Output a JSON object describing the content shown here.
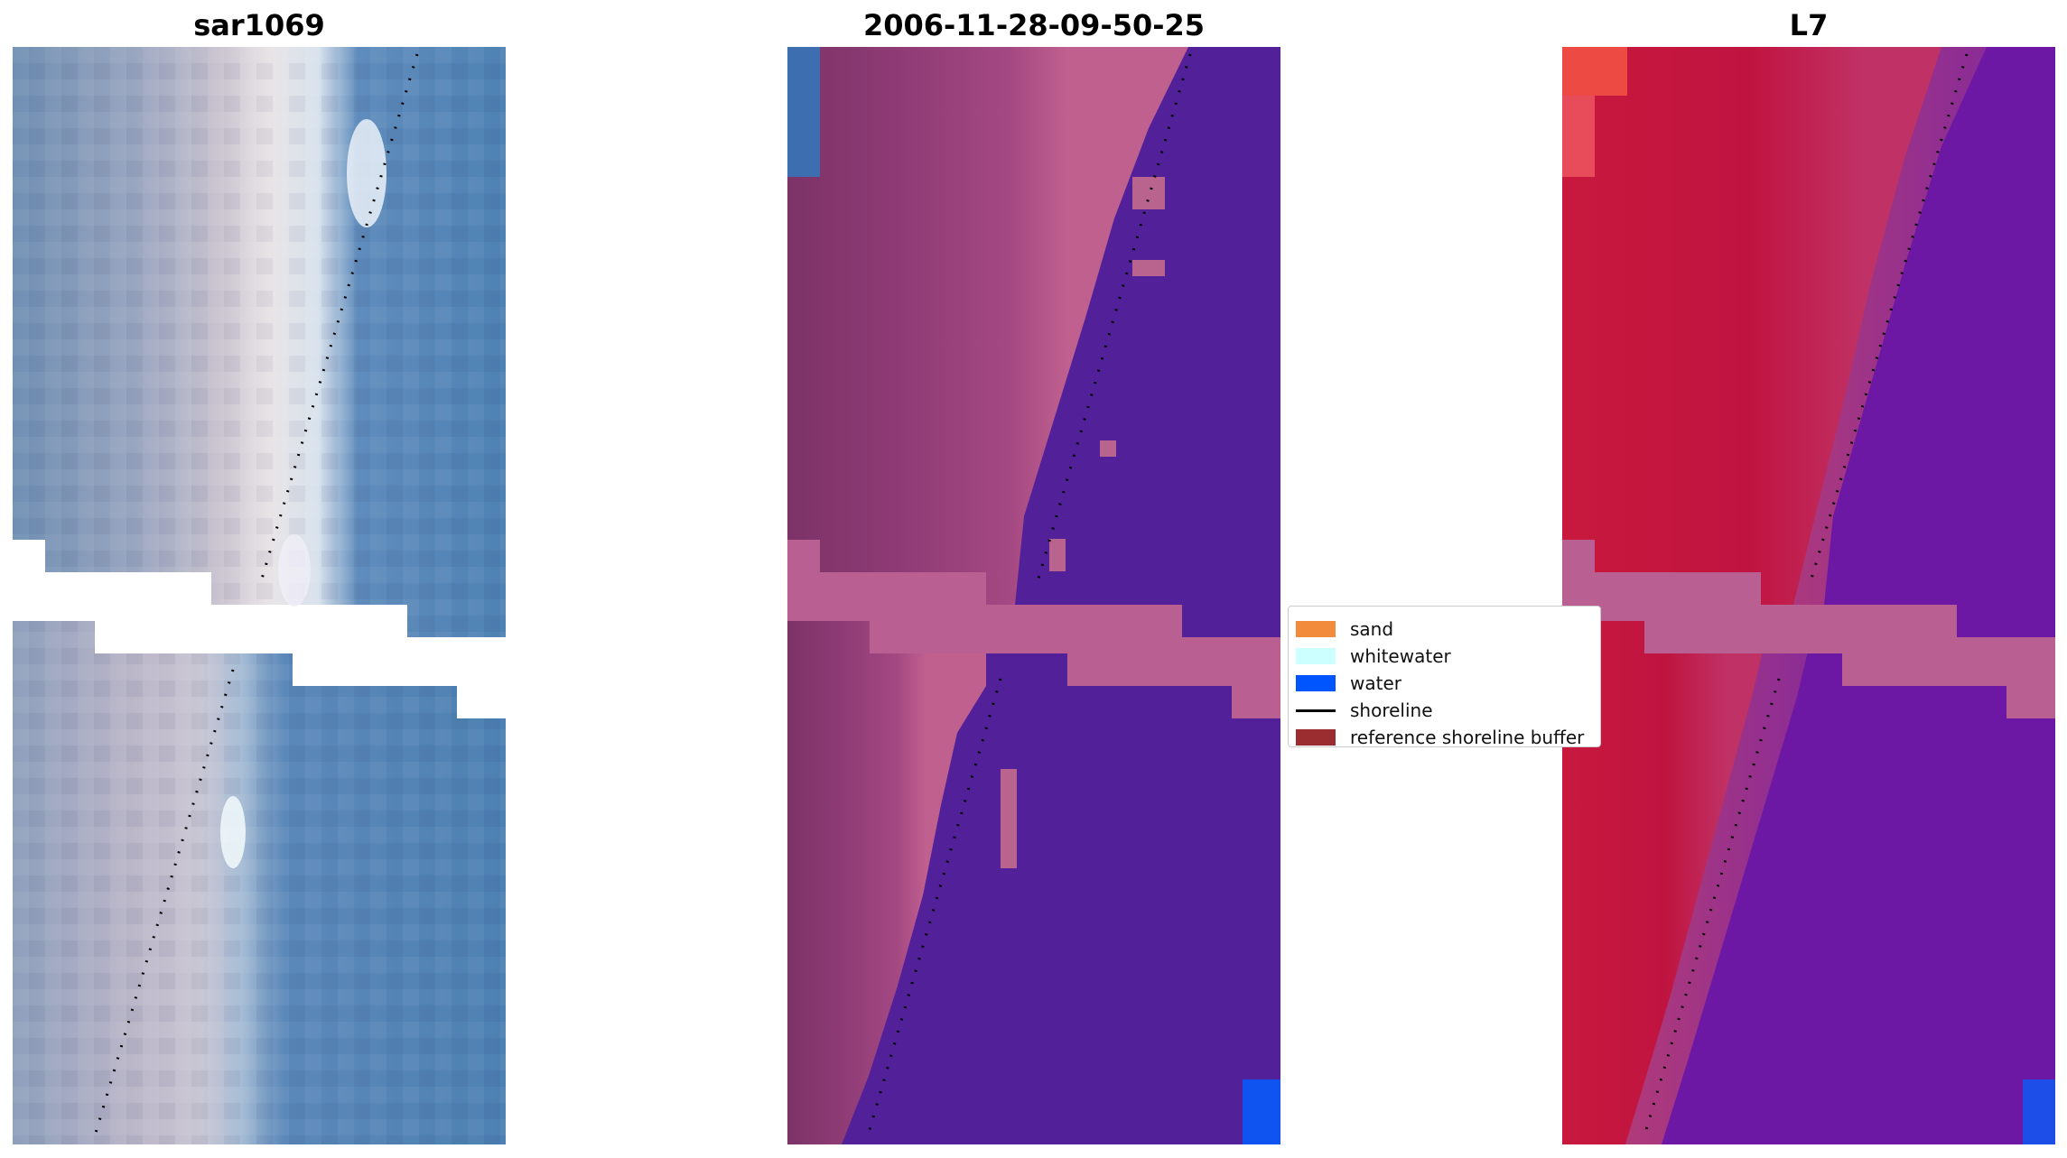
{
  "panels": [
    {
      "title": "sar1069",
      "image": "RGB satellite image"
    },
    {
      "title": "2006-11-28-09-50-25",
      "image": "classified image with overlay"
    },
    {
      "title": "L7",
      "image": "MNDWI index image"
    }
  ],
  "legend": {
    "items": [
      {
        "label": "sand",
        "color": "#f28b3c",
        "kind": "patch"
      },
      {
        "label": "whitewater",
        "color": "#ccffff",
        "kind": "patch"
      },
      {
        "label": "water",
        "color": "#0055ff",
        "kind": "patch"
      },
      {
        "label": "shoreline",
        "color": "#000000",
        "kind": "line"
      },
      {
        "label": "reference shoreline buffer",
        "color": "#9b2d30",
        "kind": "patch"
      }
    ]
  }
}
